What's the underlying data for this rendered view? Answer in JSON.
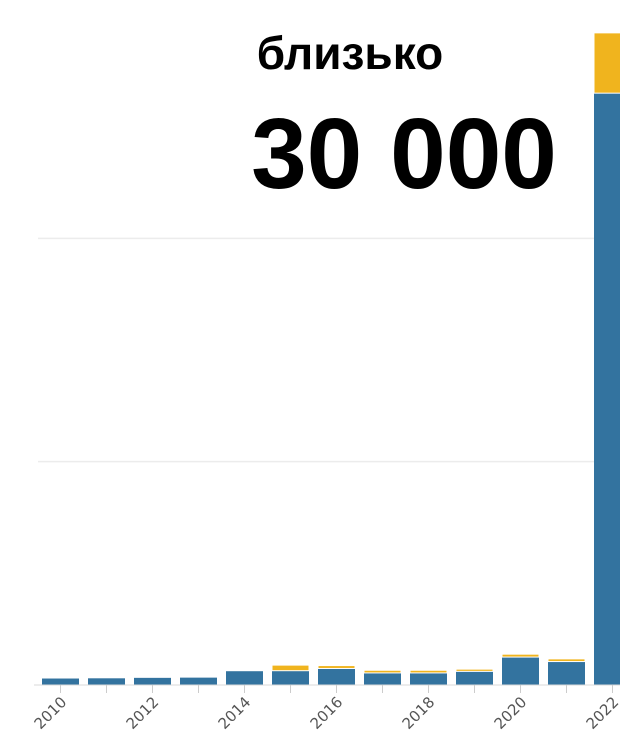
{
  "chart_data": {
    "type": "bar",
    "stacked": true,
    "categories": [
      "2010",
      "2011",
      "2012",
      "2013",
      "2014",
      "2015",
      "2016",
      "2017",
      "2018",
      "2019",
      "2020",
      "2021",
      "2022"
    ],
    "x_tick_labels": [
      "2010",
      "2012",
      "2014",
      "2016",
      "2018",
      "2020",
      "2022"
    ],
    "series": [
      {
        "color": "#33739f",
        "values": [
          290,
          300,
          320,
          330,
          640,
          640,
          740,
          540,
          540,
          610,
          1250,
          1050,
          26500
        ]
      },
      {
        "color": "#f0b41e",
        "values": [
          0,
          0,
          0,
          0,
          40,
          250,
          130,
          120,
          120,
          100,
          130,
          120,
          2700
        ]
      }
    ],
    "ylim": [
      0,
      30000
    ],
    "grid": true,
    "annotation": {
      "line1": "близько",
      "line2": "30 000"
    }
  }
}
